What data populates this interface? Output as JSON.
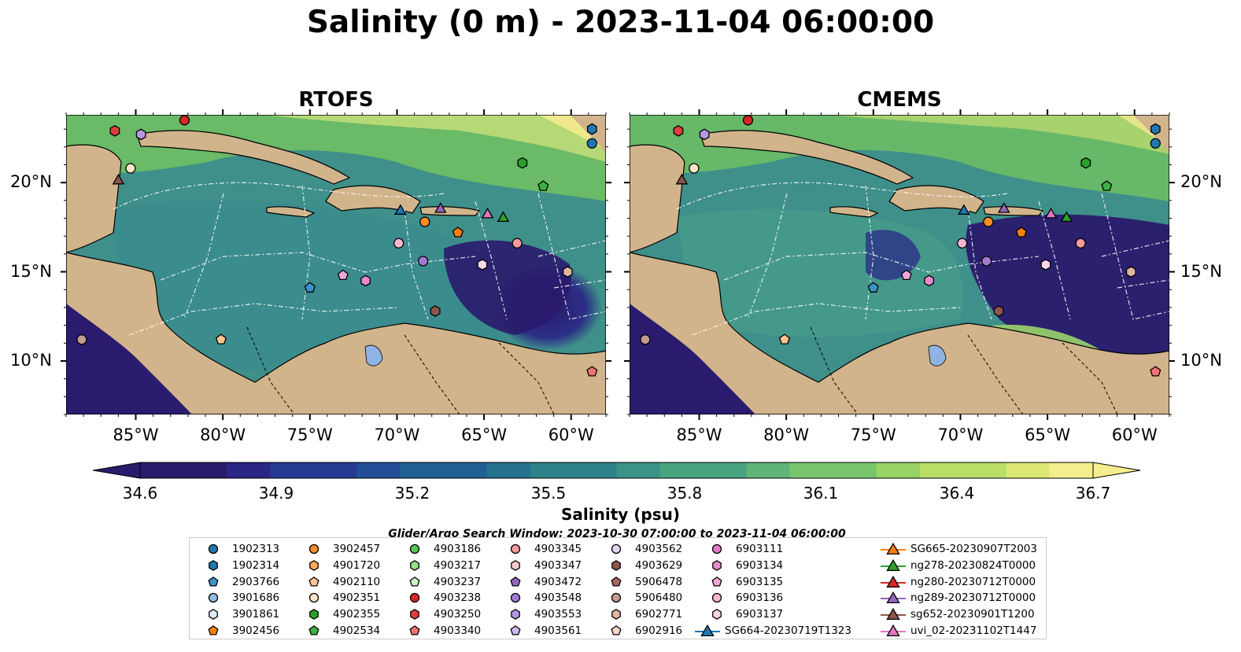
{
  "title": "Salinity (0 m) - 2023-11-04 06:00:00",
  "panels": [
    {
      "title": "RTOFS",
      "id": "rtofs"
    },
    {
      "title": "CMEMS",
      "id": "cmems"
    }
  ],
  "axes": {
    "lon_labels": [
      "85°W",
      "80°W",
      "75°W",
      "70°W",
      "65°W",
      "60°W"
    ],
    "lon_values": [
      -85,
      -80,
      -75,
      -70,
      -65,
      -60
    ],
    "lat_labels": [
      "20°N",
      "15°N",
      "10°N"
    ],
    "lat_values": [
      20,
      15,
      10
    ],
    "lon_range": [
      -89,
      -58
    ],
    "lat_range": [
      7,
      23.8
    ]
  },
  "colorbar": {
    "label": "Salinity (psu)",
    "ticks": [
      "34.6",
      "34.9",
      "35.2",
      "35.5",
      "35.8",
      "36.1",
      "36.4",
      "36.7"
    ],
    "tick_values": [
      34.6,
      34.9,
      35.2,
      35.5,
      35.8,
      36.1,
      36.4,
      36.7
    ],
    "range": [
      34.6,
      36.7
    ],
    "extend": "both",
    "colormap": "haline"
  },
  "search_window": "Glider/Argo Search Window: 2023-10-30 07:00:00 to 2023-11-04 06:00:00",
  "colors": {
    "land": "#d2b48c",
    "ocean_fresh": "#2a1a6b",
    "ocean_mid": "#2f8a8e",
    "ocean_salty": "#6fcf5e",
    "ocean_max": "#f5ee8f",
    "eez_lines": "#ffffff",
    "lake": "#8fb4e3"
  },
  "legend": [
    {
      "label": "1902313",
      "marker": "circle",
      "color": "#1f77b4"
    },
    {
      "label": "1902314",
      "marker": "hexagon",
      "color": "#1f77b4"
    },
    {
      "label": "2903766",
      "marker": "pentagon",
      "color": "#3a92cc"
    },
    {
      "label": "3901686",
      "marker": "circle",
      "color": "#8fbde3"
    },
    {
      "label": "3901861",
      "marker": "hexagon",
      "color": "#dcecf8"
    },
    {
      "label": "3902456",
      "marker": "pentagon",
      "color": "#ff7f0e"
    },
    {
      "label": "3902457",
      "marker": "circle",
      "color": "#ff8c25"
    },
    {
      "label": "4901720",
      "marker": "hexagon",
      "color": "#ffa75a"
    },
    {
      "label": "4902110",
      "marker": "pentagon",
      "color": "#ffc590"
    },
    {
      "label": "4902351",
      "marker": "circle",
      "color": "#ffe6c8"
    },
    {
      "label": "4902355",
      "marker": "hexagon",
      "color": "#2ca02c"
    },
    {
      "label": "4902534",
      "marker": "pentagon",
      "color": "#3cb043"
    },
    {
      "label": "4903186",
      "marker": "circle",
      "color": "#5cc45a"
    },
    {
      "label": "4903217",
      "marker": "hexagon",
      "color": "#98df8a"
    },
    {
      "label": "4903237",
      "marker": "pentagon",
      "color": "#ccf0c2"
    },
    {
      "label": "4903238",
      "marker": "circle",
      "color": "#d62728"
    },
    {
      "label": "4903250",
      "marker": "hexagon",
      "color": "#de3e3e"
    },
    {
      "label": "4903340",
      "marker": "pentagon",
      "color": "#f07272"
    },
    {
      "label": "4903345",
      "marker": "circle",
      "color": "#f59a9a"
    },
    {
      "label": "4903347",
      "marker": "hexagon",
      "color": "#fbc9c9"
    },
    {
      "label": "4903472",
      "marker": "pentagon",
      "color": "#9467bd"
    },
    {
      "label": "4903548",
      "marker": "circle",
      "color": "#a07ad0"
    },
    {
      "label": "4903553",
      "marker": "hexagon",
      "color": "#b497e0"
    },
    {
      "label": "4903561",
      "marker": "pentagon",
      "color": "#cdb8ef"
    },
    {
      "label": "4903562",
      "marker": "circle",
      "color": "#e4d7f7"
    },
    {
      "label": "4903629",
      "marker": "hexagon",
      "color": "#8c564b"
    },
    {
      "label": "5906478",
      "marker": "pentagon",
      "color": "#a36a5c"
    },
    {
      "label": "5906480",
      "marker": "circle",
      "color": "#c49c94"
    },
    {
      "label": "6902771",
      "marker": "hexagon",
      "color": "#e0b4a0"
    },
    {
      "label": "6902916",
      "marker": "pentagon",
      "color": "#f8d6c8"
    },
    {
      "label": "6903111",
      "marker": "circle",
      "color": "#e377c2"
    },
    {
      "label": "6903134",
      "marker": "hexagon",
      "color": "#e88acb"
    },
    {
      "label": "6903135",
      "marker": "pentagon",
      "color": "#f0a6d8"
    },
    {
      "label": "6903136",
      "marker": "circle",
      "color": "#f7b6d2"
    },
    {
      "label": "6903137",
      "marker": "hexagon",
      "color": "#fad6ea"
    },
    {
      "label": "SG664-20230719T1323",
      "marker": "triangle-line",
      "color": "#1f77b4"
    },
    {
      "label": "SG665-20230907T2003",
      "marker": "triangle-line",
      "color": "#ff7f0e"
    },
    {
      "label": "ng278-20230824T0000",
      "marker": "triangle-line",
      "color": "#2ca02c"
    },
    {
      "label": "ng280-20230712T0000",
      "marker": "triangle-line",
      "color": "#d62728"
    },
    {
      "label": "ng289-20230712T0000",
      "marker": "triangle-line",
      "color": "#9467bd"
    },
    {
      "label": "sg652-20230901T1200",
      "marker": "triangle-line",
      "color": "#8c564b"
    },
    {
      "label": "uvi_02-20231102T1447",
      "marker": "triangle-line",
      "color": "#e377c2"
    }
  ],
  "chart_data": {
    "type": "heatmap",
    "title": "Salinity (0 m) - 2023-11-04 06:00:00",
    "variable": "Salinity (psu)",
    "depth": "0 m",
    "panels": [
      "RTOFS",
      "CMEMS"
    ],
    "lon_range": [
      -89,
      -58
    ],
    "lat_range": [
      7,
      23.8
    ],
    "value_range": [
      34.6,
      36.7
    ],
    "platforms": [
      {
        "label": "3902457",
        "marker": "circle",
        "color": "#ff8c25",
        "lon": -68.4,
        "lat": 17.8
      },
      {
        "label": "3902456",
        "marker": "pentagon",
        "color": "#ff7f0e",
        "lon": -66.5,
        "lat": 17.2
      },
      {
        "label": "4903345",
        "marker": "circle",
        "color": "#f59a9a",
        "lon": -63.1,
        "lat": 16.6
      },
      {
        "label": "4902351",
        "marker": "circle",
        "color": "#ffe6c8",
        "lon": -85.3,
        "lat": 20.8
      },
      {
        "label": "4903238",
        "marker": "circle",
        "color": "#d62728",
        "lon": -82.2,
        "lat": 23.5
      },
      {
        "label": "4903250",
        "marker": "hexagon",
        "color": "#de3e3e",
        "lon": -86.2,
        "lat": 22.9
      },
      {
        "label": "4903553",
        "marker": "hexagon",
        "color": "#b497e0",
        "lon": -84.7,
        "lat": 22.7
      },
      {
        "label": "1902313",
        "marker": "circle",
        "color": "#1f77b4",
        "lon": -58.8,
        "lat": 22.2
      },
      {
        "label": "1902314",
        "marker": "hexagon",
        "color": "#1f77b4",
        "lon": -58.8,
        "lat": 23.0
      },
      {
        "label": "4902355",
        "marker": "hexagon",
        "color": "#2ca02c",
        "lon": -62.8,
        "lat": 21.1
      },
      {
        "label": "4902534",
        "marker": "pentagon",
        "color": "#3cb043",
        "lon": -61.6,
        "lat": 19.8
      },
      {
        "label": "6903137",
        "marker": "hexagon",
        "color": "#fad6ea",
        "lon": -65.1,
        "lat": 15.4
      },
      {
        "label": "6903136",
        "marker": "circle",
        "color": "#f7b6d2",
        "lon": -69.9,
        "lat": 16.6
      },
      {
        "label": "6903135",
        "marker": "pentagon",
        "color": "#f0a6d8",
        "lon": -73.1,
        "lat": 14.8
      },
      {
        "label": "6903134",
        "marker": "hexagon",
        "color": "#e88acb",
        "lon": -71.8,
        "lat": 14.5
      },
      {
        "label": "2903766",
        "marker": "pentagon",
        "color": "#3a92cc",
        "lon": -75.0,
        "lat": 14.1
      },
      {
        "label": "4903629",
        "marker": "hexagon",
        "color": "#8c564b",
        "lon": -67.8,
        "lat": 12.8
      },
      {
        "label": "4902110",
        "marker": "pentagon",
        "color": "#ffc590",
        "lon": -80.1,
        "lat": 11.2
      },
      {
        "label": "4903548",
        "marker": "circle",
        "color": "#a07ad0",
        "lon": -68.5,
        "lat": 15.6
      },
      {
        "label": "5906480",
        "marker": "circle",
        "color": "#c49c94",
        "lon": -88.1,
        "lat": 11.2
      },
      {
        "label": "6902771",
        "marker": "hexagon",
        "color": "#e0b4a0",
        "lon": -60.2,
        "lat": 15.0
      },
      {
        "label": "4903340",
        "marker": "pentagon",
        "color": "#f07272",
        "lon": -58.8,
        "lat": 9.4
      },
      {
        "label": "SG664-20230719T1323",
        "marker": "triangle",
        "color": "#1f77b4",
        "lon": -69.8,
        "lat": 18.4
      },
      {
        "label": "ng289-20230712T0000",
        "marker": "triangle",
        "color": "#9467bd",
        "lon": -67.5,
        "lat": 18.5
      },
      {
        "label": "uvi_02-20231102T1447",
        "marker": "triangle",
        "color": "#e377c2",
        "lon": -64.8,
        "lat": 18.2
      },
      {
        "label": "ng278-20230824T0000",
        "marker": "triangle",
        "color": "#2ca02c",
        "lon": -63.9,
        "lat": 18.0
      },
      {
        "label": "sg652-20230901T1200",
        "marker": "triangle",
        "color": "#8c564b",
        "lon": -86.0,
        "lat": 20.1
      }
    ]
  }
}
